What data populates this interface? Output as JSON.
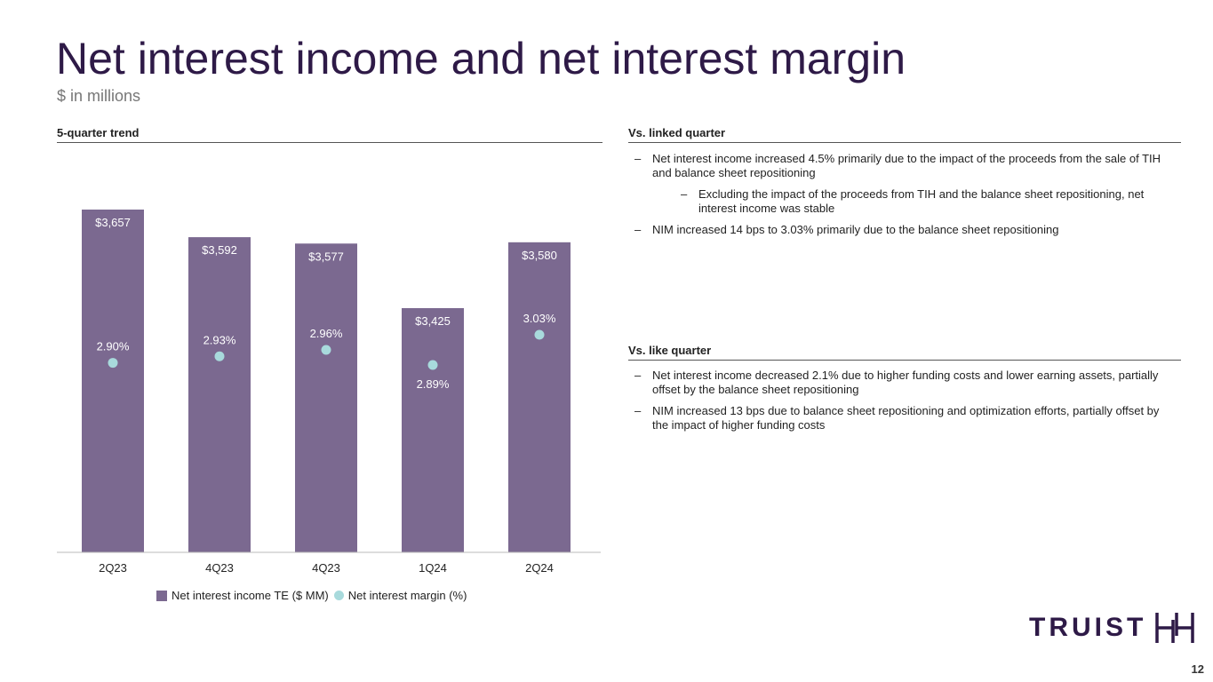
{
  "title": "Net interest income and net interest margin",
  "subtitle": "$ in millions",
  "left_section": {
    "heading": "5-quarter trend"
  },
  "right_sections": [
    {
      "heading": "Vs. linked quarter",
      "bullets": [
        {
          "text": "Net interest income increased 4.5% primarily due to the impact of the proceeds from the sale of TIH and balance sheet repositioning",
          "sub": false
        },
        {
          "text": "Excluding the impact of the proceeds from TIH and the balance sheet repositioning, net interest income was stable",
          "sub": true
        },
        {
          "text": "NIM increased 14 bps to 3.03% primarily due to the balance sheet repositioning",
          "sub": false
        }
      ]
    },
    {
      "heading": "Vs. like quarter",
      "bullets": [
        {
          "text": "Net interest income decreased 2.1% due to higher funding costs and lower earning assets, partially offset by the balance sheet repositioning",
          "sub": false
        },
        {
          "text": "NIM increased 13 bps due to balance sheet repositioning and optimization efforts, partially offset by the impact of higher funding costs",
          "sub": false
        }
      ]
    }
  ],
  "chart_data": {
    "type": "bar",
    "categories": [
      "2Q23",
      "4Q23",
      "4Q23",
      "1Q24",
      "2Q24"
    ],
    "series": [
      {
        "name": "Net interest income TE ($ MM)",
        "type": "bar",
        "values": [
          3657,
          3592,
          3577,
          3425,
          3580
        ],
        "labels": [
          "$3,657",
          "$3,592",
          "$3,577",
          "$3,425",
          "$3,580"
        ],
        "color": "#7b6990"
      },
      {
        "name": "Net interest margin (%)",
        "type": "scatter",
        "values": [
          2.9,
          2.93,
          2.96,
          2.89,
          3.03
        ],
        "labels": [
          "2.90%",
          "2.93%",
          "2.96%",
          "2.89%",
          "3.03%"
        ],
        "color": "#a8dadc"
      }
    ],
    "legend": "bottom-center"
  },
  "logo": {
    "text": "TRUIST"
  },
  "page_number": "12",
  "colors": {
    "title": "#2e1a47",
    "bar": "#7b6990",
    "dot": "#a8dadc"
  }
}
